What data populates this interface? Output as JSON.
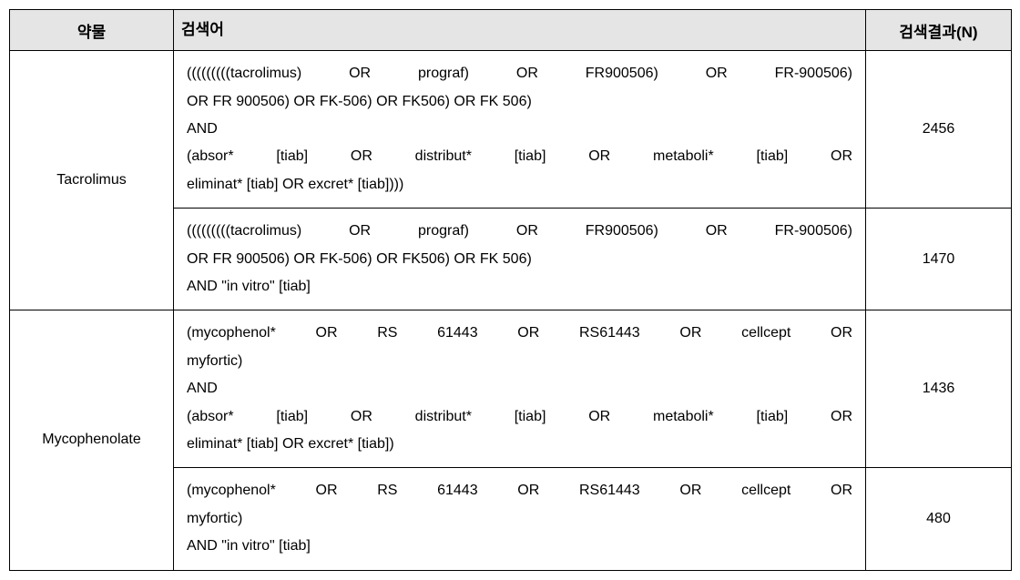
{
  "headers": {
    "drug": "약물",
    "query": "검색어",
    "result": "검색결과(N)"
  },
  "rows": [
    {
      "drug": "Tacrolimus",
      "queries": [
        {
          "lines": [
            {
              "text": "(((((((((tacrolimus) OR prograf) OR FR900506) OR FR-900506)",
              "justify": true
            },
            {
              "text": "OR FR 900506) OR FK-506) OR FK506) OR FK 506)",
              "justify": false
            },
            {
              "text": "AND",
              "justify": false
            },
            {
              "text": "(absor* [tiab] OR distribut* [tiab] OR metaboli* [tiab] OR",
              "justify": true
            },
            {
              "text": "eliminat* [tiab] OR excret* [tiab])))",
              "justify": false
            }
          ],
          "result": "2456"
        },
        {
          "lines": [
            {
              "text": "(((((((((tacrolimus) OR prograf) OR FR900506) OR FR-900506)",
              "justify": true
            },
            {
              "text": "OR FR 900506) OR FK-506) OR FK506) OR FK 506)",
              "justify": false
            },
            {
              "text": "AND \"in vitro\" [tiab]",
              "justify": false
            }
          ],
          "result": "1470"
        }
      ]
    },
    {
      "drug": "Mycophenolate",
      "queries": [
        {
          "lines": [
            {
              "text": "(mycophenol* OR RS 61443 OR RS61443 OR cellcept OR",
              "justify": true
            },
            {
              "text": "myfortic)",
              "justify": false
            },
            {
              "text": "AND",
              "justify": false
            },
            {
              "text": "(absor* [tiab] OR distribut* [tiab] OR metaboli* [tiab] OR",
              "justify": true
            },
            {
              "text": "eliminat* [tiab] OR excret* [tiab])",
              "justify": false
            }
          ],
          "result": "1436"
        },
        {
          "lines": [
            {
              "text": "(mycophenol* OR RS 61443 OR RS61443 OR cellcept OR",
              "justify": true
            },
            {
              "text": "myfortic)",
              "justify": false
            },
            {
              "text": "AND \"in vitro\" [tiab]",
              "justify": false
            }
          ],
          "result": "480"
        }
      ]
    }
  ]
}
